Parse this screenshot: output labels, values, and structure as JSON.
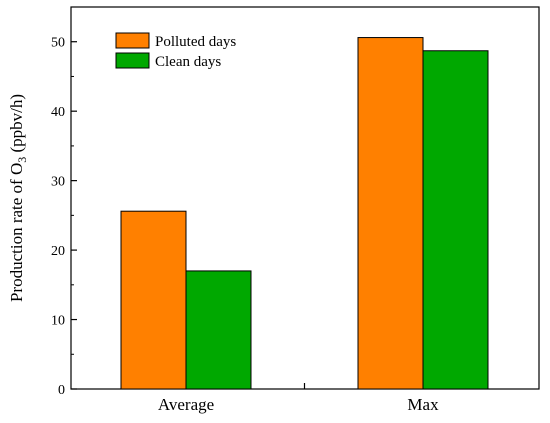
{
  "chart_data": {
    "type": "bar",
    "categories": [
      "Average",
      "Max"
    ],
    "series": [
      {
        "name": "Polluted days",
        "values": [
          25.6,
          50.6
        ],
        "color": "#ff8000"
      },
      {
        "name": "Clean days",
        "values": [
          17.0,
          48.7
        ],
        "color": "#00a800"
      }
    ],
    "title": "",
    "xlabel": "",
    "ylabel": "Production rate of O",
    "ylabel_subscript": "3",
    "ylabel_suffix": " (ppbv/h)",
    "ylim": [
      0,
      55
    ],
    "yticks": [
      0,
      10,
      20,
      30,
      40,
      50
    ],
    "grid": false,
    "legend_position": "top-left"
  }
}
